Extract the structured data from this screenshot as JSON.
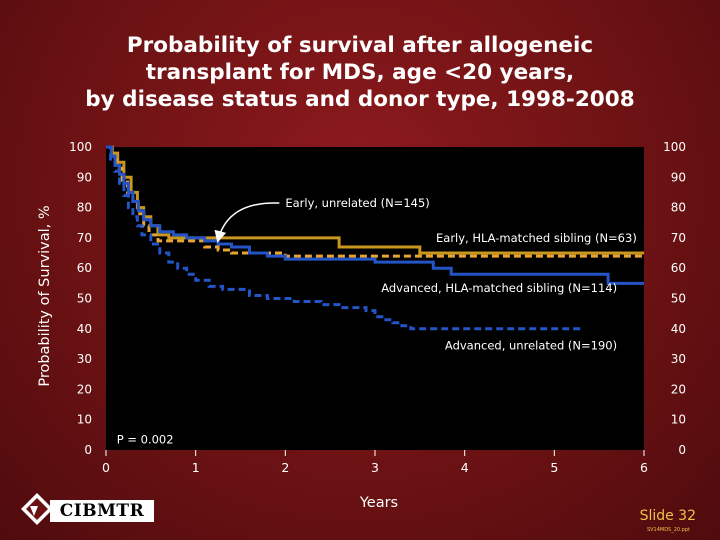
{
  "chart_data": {
    "type": "line",
    "step": true,
    "title_lines": [
      "Probability of survival after allogeneic",
      "transplant for MDS, age <20 years,",
      "by disease status and donor type, 1998-2008"
    ],
    "xlabel": "Years",
    "ylabel": "Probability of Survival, %",
    "xlim": [
      0,
      6
    ],
    "ylim": [
      0,
      100
    ],
    "xticks": [
      "0",
      "1",
      "2",
      "3",
      "4",
      "5",
      "6"
    ],
    "yticks": [
      "0",
      "10",
      "20",
      "30",
      "40",
      "50",
      "60",
      "70",
      "80",
      "90",
      "100"
    ],
    "annotation": "P = 0.002",
    "series": [
      {
        "name": "Early, HLA-matched sibling (N=63)",
        "color": "#c9961e",
        "dashed": false,
        "points": [
          [
            0,
            100
          ],
          [
            0.07,
            98
          ],
          [
            0.13,
            95
          ],
          [
            0.2,
            90
          ],
          [
            0.28,
            85
          ],
          [
            0.35,
            80
          ],
          [
            0.42,
            77
          ],
          [
            0.5,
            74
          ],
          [
            0.58,
            71
          ],
          [
            0.7,
            70
          ],
          [
            1.2,
            70
          ],
          [
            1.6,
            70
          ],
          [
            2.1,
            70
          ],
          [
            2.6,
            67
          ],
          [
            3.0,
            67
          ],
          [
            3.5,
            65
          ],
          [
            4.0,
            65
          ],
          [
            5.0,
            65
          ],
          [
            6.0,
            65
          ]
        ]
      },
      {
        "name": "Early, unrelated (N=145)",
        "color": "#e8a534",
        "dashed": true,
        "points": [
          [
            0,
            100
          ],
          [
            0.06,
            97
          ],
          [
            0.12,
            93
          ],
          [
            0.18,
            89
          ],
          [
            0.24,
            85
          ],
          [
            0.3,
            82
          ],
          [
            0.36,
            78
          ],
          [
            0.42,
            74
          ],
          [
            0.48,
            71
          ],
          [
            0.58,
            69
          ],
          [
            0.75,
            69
          ],
          [
            0.95,
            69
          ],
          [
            1.1,
            67
          ],
          [
            1.25,
            66
          ],
          [
            1.4,
            65
          ],
          [
            1.9,
            65
          ],
          [
            2.0,
            64
          ],
          [
            3.0,
            64
          ],
          [
            4.0,
            64
          ],
          [
            5.0,
            64
          ],
          [
            6.0,
            64
          ]
        ]
      },
      {
        "name": "Advanced, HLA-matched sibling (N=114)",
        "color": "#2454c6",
        "dashed": false,
        "points": [
          [
            0,
            100
          ],
          [
            0.06,
            97
          ],
          [
            0.1,
            94
          ],
          [
            0.15,
            91
          ],
          [
            0.2,
            88
          ],
          [
            0.25,
            85
          ],
          [
            0.3,
            82
          ],
          [
            0.36,
            79
          ],
          [
            0.42,
            76
          ],
          [
            0.5,
            74
          ],
          [
            0.6,
            72
          ],
          [
            0.75,
            71
          ],
          [
            0.9,
            70
          ],
          [
            1.1,
            69
          ],
          [
            1.25,
            68
          ],
          [
            1.4,
            67
          ],
          [
            1.6,
            65
          ],
          [
            1.8,
            64
          ],
          [
            2.0,
            63
          ],
          [
            2.5,
            63
          ],
          [
            3.0,
            62
          ],
          [
            3.6,
            62
          ],
          [
            3.65,
            60
          ],
          [
            3.8,
            60
          ],
          [
            3.85,
            58
          ],
          [
            4.5,
            58
          ],
          [
            5.5,
            58
          ],
          [
            5.6,
            55
          ],
          [
            6.0,
            55
          ]
        ]
      },
      {
        "name": "Advanced, unrelated (N=190)",
        "color": "#2454c6",
        "dashed": true,
        "points": [
          [
            0,
            100
          ],
          [
            0.05,
            96
          ],
          [
            0.1,
            92
          ],
          [
            0.15,
            88
          ],
          [
            0.2,
            84
          ],
          [
            0.25,
            80
          ],
          [
            0.3,
            77
          ],
          [
            0.35,
            74
          ],
          [
            0.4,
            71
          ],
          [
            0.5,
            68
          ],
          [
            0.6,
            65
          ],
          [
            0.7,
            62
          ],
          [
            0.8,
            60
          ],
          [
            0.9,
            58
          ],
          [
            1.0,
            56
          ],
          [
            1.15,
            54
          ],
          [
            1.3,
            53
          ],
          [
            1.6,
            51
          ],
          [
            1.8,
            50
          ],
          [
            2.1,
            49
          ],
          [
            2.4,
            48
          ],
          [
            2.6,
            47
          ],
          [
            2.9,
            46
          ],
          [
            3.0,
            44
          ],
          [
            3.1,
            43
          ],
          [
            3.2,
            42
          ],
          [
            3.3,
            41
          ],
          [
            3.4,
            40
          ],
          [
            3.5,
            40
          ],
          [
            4.0,
            40
          ],
          [
            4.5,
            40
          ],
          [
            5.0,
            40
          ],
          [
            5.3,
            40
          ]
        ]
      }
    ],
    "labels": [
      {
        "text": "Early, unrelated (N=145)",
        "x": 2.0,
        "y": 81.5,
        "anchor": "start",
        "arrow_to": [
          1.25,
          68
        ]
      },
      {
        "text": "Early, HLA-matched sibling (N=63)",
        "x": 5.92,
        "y": 70,
        "anchor": "end"
      },
      {
        "text": "Advanced, HLA-matched sibling (N=114)",
        "x": 5.7,
        "y": 53.5,
        "anchor": "end"
      },
      {
        "text": "Advanced, unrelated (N=190)",
        "x": 5.7,
        "y": 34.5,
        "anchor": "end"
      },
      {
        "text": "P = 0.002",
        "x": 0.12,
        "y": 3.5,
        "anchor": "start"
      }
    ]
  },
  "logo_text": "CIBMTR",
  "slide_label": "Slide 32",
  "file_label": "SV14MDS_20.ppt"
}
